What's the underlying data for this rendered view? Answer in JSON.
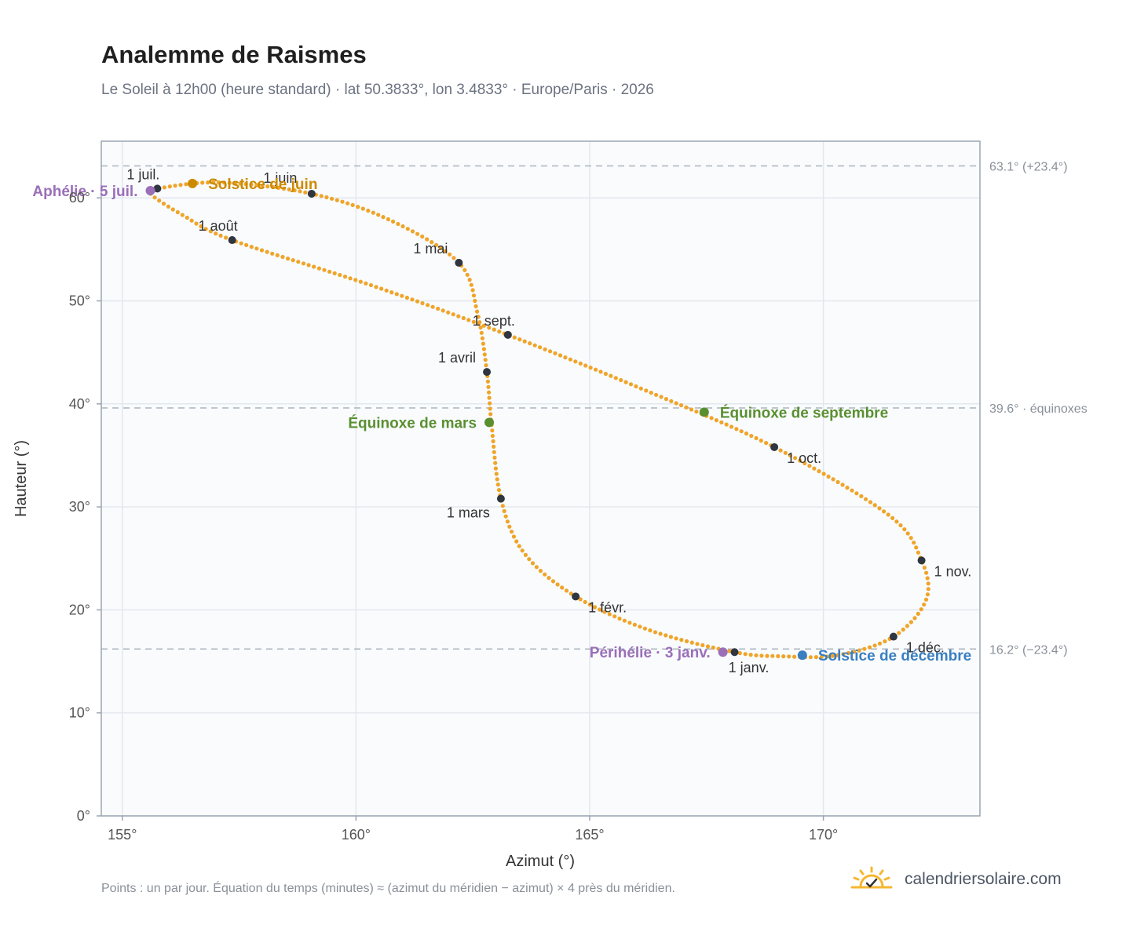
{
  "title": "Analemme de Raismes",
  "subtitle": "Le Soleil à 12h00 (heure standard) · lat 50.3833°, lon 3.4833° · Europe/Paris · 2026",
  "footnote": "Points : un par jour. Équation du temps (minutes) ≈ (azimut du méridien − azimut) × 4 près du méridien.",
  "brand": {
    "name": "calendriersolaire.com",
    "logo_icon": "sun-check-icon",
    "logo_color": "#f5b731"
  },
  "chart_data": {
    "type": "scatter",
    "xlabel": "Azimut (°)",
    "ylabel": "Hauteur (°)",
    "xlim": [
      154.55,
      173.35
    ],
    "ylim": [
      0,
      65.5
    ],
    "x_ticks": [
      155,
      160,
      165,
      170
    ],
    "x_tick_labels": [
      "155°",
      "160°",
      "165°",
      "170°"
    ],
    "y_ticks": [
      0,
      10,
      20,
      30,
      40,
      50,
      60
    ],
    "y_tick_labels": [
      "0°",
      "10°",
      "20°",
      "30°",
      "40°",
      "50°",
      "60°"
    ],
    "grid": true,
    "colors": {
      "curve": "#f0a428",
      "month_marker": "#2f3640",
      "june": "#cc8a00",
      "december": "#3a7fc1",
      "equinox": "#5a8f30",
      "apsis": "#9a6fb8",
      "reference": "#aab4bf",
      "plot_bg": "#f9fbfd"
    },
    "reference_lines": [
      {
        "y": 63.1,
        "label": "63.1° (+23.4°)"
      },
      {
        "y": 39.6,
        "label": "39.6° · équinoxes"
      },
      {
        "y": 16.2,
        "label": "16.2° (−23.4°)"
      }
    ],
    "month_markers": [
      {
        "label": "1 janv.",
        "x": 168.1,
        "y": 15.9,
        "anchor": "below"
      },
      {
        "label": "1 févr.",
        "x": 164.7,
        "y": 21.3,
        "anchor": "right"
      },
      {
        "label": "1 mars",
        "x": 163.1,
        "y": 30.8,
        "anchor": "left"
      },
      {
        "label": "1 avril",
        "x": 162.8,
        "y": 43.1,
        "anchor": "left"
      },
      {
        "label": "1 mai",
        "x": 162.2,
        "y": 53.7,
        "anchor": "left"
      },
      {
        "label": "1 juin",
        "x": 159.05,
        "y": 60.4,
        "anchor": "top"
      },
      {
        "label": "1 juil.",
        "x": 155.75,
        "y": 60.9,
        "anchor": "topleft"
      },
      {
        "label": "1 août",
        "x": 157.35,
        "y": 55.9,
        "anchor": "topleft"
      },
      {
        "label": "1 sept.",
        "x": 163.25,
        "y": 46.7,
        "anchor": "topleft"
      },
      {
        "label": "1 oct.",
        "x": 168.95,
        "y": 35.8,
        "anchor": "right"
      },
      {
        "label": "1 nov.",
        "x": 172.1,
        "y": 24.8,
        "anchor": "right"
      },
      {
        "label": "1 déc.",
        "x": 171.5,
        "y": 17.4,
        "anchor": "right"
      }
    ],
    "events": [
      {
        "label": "Aphélie · 5 juil.",
        "x": 155.6,
        "y": 60.7,
        "color": "#9a6fb8",
        "anchor": "left"
      },
      {
        "label": "Solstice de juin",
        "x": 156.5,
        "y": 61.4,
        "color": "#cc8a00",
        "anchor": "right"
      },
      {
        "label": "Équinoxe de mars",
        "x": 162.85,
        "y": 38.2,
        "color": "#5a8f30",
        "anchor": "left"
      },
      {
        "label": "Équinoxe de septembre",
        "x": 167.45,
        "y": 39.2,
        "color": "#5a8f30",
        "anchor": "right"
      },
      {
        "label": "Périhélie · 3 janv.",
        "x": 167.85,
        "y": 15.9,
        "color": "#9a6fb8",
        "anchor": "left"
      },
      {
        "label": "Solstice de décembre",
        "x": 169.55,
        "y": 15.6,
        "color": "#3a7fc1",
        "anchor": "right"
      }
    ],
    "curve_control_points": [
      [
        168.1,
        15.9
      ],
      [
        166.3,
        18.0
      ],
      [
        164.7,
        21.3
      ],
      [
        163.6,
        25.5
      ],
      [
        163.1,
        30.8
      ],
      [
        162.9,
        38.0
      ],
      [
        162.8,
        43.1
      ],
      [
        162.6,
        48.8
      ],
      [
        162.2,
        53.7
      ],
      [
        160.7,
        57.9
      ],
      [
        159.05,
        60.4
      ],
      [
        157.1,
        61.5
      ],
      [
        155.75,
        60.9
      ],
      [
        155.6,
        60.4
      ],
      [
        156.3,
        58.3
      ],
      [
        157.35,
        55.9
      ],
      [
        160.4,
        51.4
      ],
      [
        163.25,
        46.7
      ],
      [
        166.2,
        41.3
      ],
      [
        168.95,
        35.8
      ],
      [
        171.4,
        29.2
      ],
      [
        172.1,
        24.8
      ],
      [
        172.2,
        21.0
      ],
      [
        171.5,
        17.4
      ],
      [
        170.3,
        15.6
      ],
      [
        169.1,
        15.5
      ],
      [
        168.1,
        15.9
      ]
    ]
  }
}
